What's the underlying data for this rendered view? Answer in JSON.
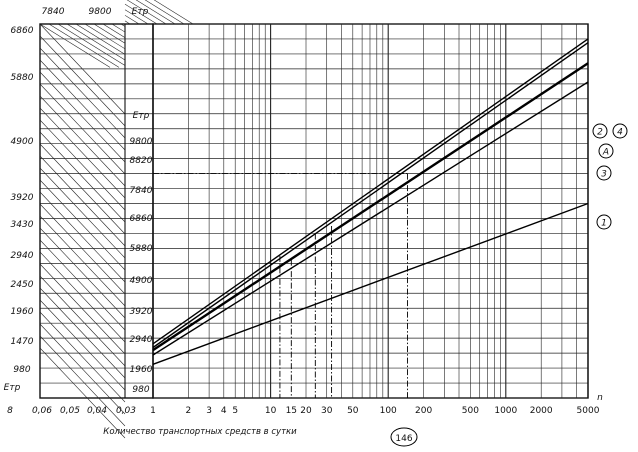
{
  "chart_data": {
    "type": "line",
    "title": "",
    "xlabel": "Количество транспортных средств в сутки",
    "x_scale": "log",
    "x_ticks": [
      "1",
      "2",
      "3",
      "4",
      "5",
      "10",
      "15",
      "20",
      "30",
      "50",
      "100",
      "200",
      "500",
      "1000",
      "2000",
      "5000"
    ],
    "x_axis_end_label": "n",
    "left_panel_ticks": [
      "8",
      "0,06",
      "0,05",
      "0,04",
      "0,03"
    ],
    "left_axis": {
      "label_top": "7840",
      "label_top2": "9800",
      "symbol": "Eтр",
      "ticks": [
        "6860",
        "5880",
        "4900",
        "3920",
        "3430",
        "2940",
        "2450",
        "1960",
        "1470",
        "980"
      ],
      "bottom_symbol": "Eтр"
    },
    "mid_axis": {
      "symbol": "Eтр",
      "ticks": [
        "9800",
        "8820",
        "7840",
        "6860",
        "5880",
        "4900",
        "3920",
        "2940",
        "1960",
        "980"
      ]
    },
    "series": [
      {
        "name": "1",
        "x": [
          1,
          5000
        ],
        "y": [
          900,
          5200
        ]
      },
      {
        "name": "3",
        "x": [
          1,
          5000
        ],
        "y": [
          1150,
          8450
        ]
      },
      {
        "name": "A",
        "x": [
          1,
          5000
        ],
        "y": [
          1280,
          8950
        ]
      },
      {
        "name": "2",
        "x": [
          1,
          5000
        ],
        "y": [
          1350,
          9500
        ]
      },
      {
        "name": "4",
        "x": [
          1,
          5000
        ],
        "y": [
          1450,
          9600
        ]
      }
    ],
    "annotation": {
      "label": "146",
      "x": 146
    },
    "grid": true
  }
}
